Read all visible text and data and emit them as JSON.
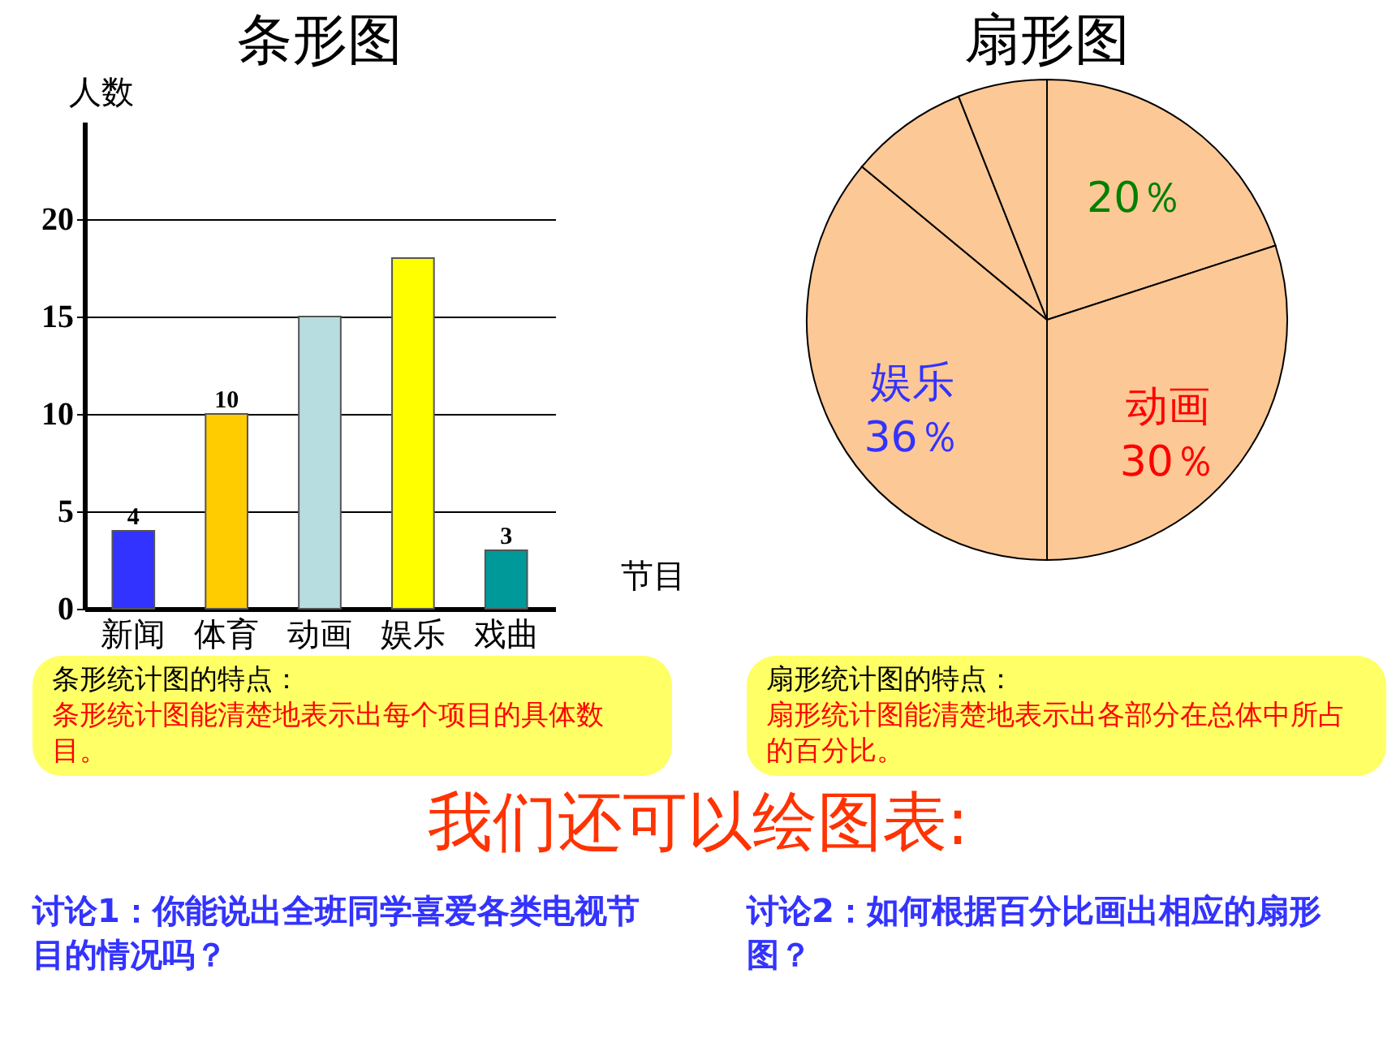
{
  "chart_data": [
    {
      "type": "bar",
      "title": "条形图",
      "categories": [
        "新闻",
        "体育",
        "动画",
        "娱乐",
        "戏曲"
      ],
      "values": [
        4,
        10,
        15,
        18,
        3
      ],
      "colors": [
        "#3333ff",
        "#ffcc00",
        "#b8dde0",
        "#ffff00",
        "#009999"
      ],
      "value_labels": [
        "4",
        "10",
        null,
        null,
        "3"
      ],
      "xlabel": "节目",
      "ylabel": "人数",
      "ylim": [
        0,
        25
      ],
      "yticks": [
        0,
        5,
        10,
        15,
        20
      ],
      "grid": "y",
      "annotations": [
        "条形统计图的特点：",
        "条形统计图能清楚地表示出每个项目的具体数目。",
        "讨论1：你能说出全班同学喜爱各类电视节目的情况吗？",
        "我们还可以绘图表:"
      ]
    },
    {
      "type": "pie",
      "title": "扇形图",
      "categories": [
        null,
        "动画",
        "娱乐",
        null,
        null
      ],
      "values": [
        20,
        30,
        36,
        8,
        6
      ],
      "colors": [
        "#fcc896",
        "#fcc896",
        "#fcc896",
        "#fcc896",
        "#fcc896"
      ],
      "value_labels": [
        "20％",
        "30％",
        "36％",
        null,
        null
      ],
      "annotations": [
        "扇形统计图的特点：",
        "扇形统计图能清楚地表示出各部分在总体中所占的百分比。",
        "讨论2：如何根据百分比画出相应的扇形图？"
      ]
    }
  ]
}
